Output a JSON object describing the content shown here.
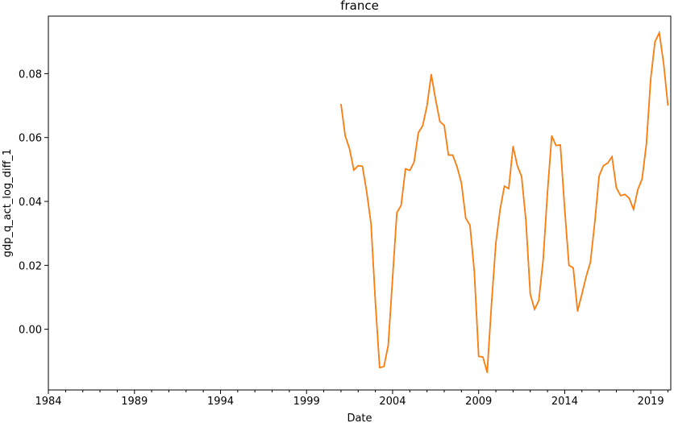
{
  "chart_data": {
    "type": "line",
    "title": "france",
    "xlabel": "Date",
    "ylabel": "gdp_q_act_log_diff_1",
    "x_axis": "date",
    "xlim": [
      "1984-01-01",
      "2020-03-01"
    ],
    "ylim": [
      -0.019,
      0.098
    ],
    "x_ticks": [
      "1984",
      "1989",
      "1994",
      "1999",
      "2004",
      "2009",
      "2014",
      "2019"
    ],
    "y_ticks": [
      "0.00",
      "0.02",
      "0.04",
      "0.06",
      "0.08"
    ],
    "grid": false,
    "legend": "none",
    "series": [
      {
        "color": "#ff7f0e",
        "underlay_color": "#1f77b4",
        "x": [
          "2001-01-01",
          "2001-04-01",
          "2001-07-01",
          "2001-10-01",
          "2002-01-01",
          "2002-04-01",
          "2002-07-01",
          "2002-10-01",
          "2003-01-01",
          "2003-04-01",
          "2003-07-01",
          "2003-10-01",
          "2004-01-01",
          "2004-04-01",
          "2004-07-01",
          "2004-10-01",
          "2005-01-01",
          "2005-04-01",
          "2005-07-01",
          "2005-10-01",
          "2006-01-01",
          "2006-04-01",
          "2006-07-01",
          "2006-10-01",
          "2007-01-01",
          "2007-04-01",
          "2007-07-01",
          "2007-10-01",
          "2008-01-01",
          "2008-04-01",
          "2008-07-01",
          "2008-10-01",
          "2009-01-01",
          "2009-04-01",
          "2009-07-01",
          "2009-10-01",
          "2010-01-01",
          "2010-04-01",
          "2010-07-01",
          "2010-10-01",
          "2011-01-01",
          "2011-04-01",
          "2011-07-01",
          "2011-10-01",
          "2012-01-01",
          "2012-04-01",
          "2012-07-01",
          "2012-10-01",
          "2013-01-01",
          "2013-04-01",
          "2013-07-01",
          "2013-10-01",
          "2014-01-01",
          "2014-04-01",
          "2014-07-01",
          "2014-10-01",
          "2015-01-01",
          "2015-04-01",
          "2015-07-01",
          "2015-10-01",
          "2016-01-01",
          "2016-04-01",
          "2016-07-01",
          "2016-10-01",
          "2017-01-01",
          "2017-04-01",
          "2017-07-01",
          "2017-10-01",
          "2018-01-01",
          "2018-04-01",
          "2018-07-01",
          "2018-10-01",
          "2019-01-01",
          "2019-04-01",
          "2019-07-01",
          "2019-10-01",
          "2020-01-01"
        ],
        "y": [
          0.0705,
          0.0605,
          0.0565,
          0.0498,
          0.0512,
          0.051,
          0.043,
          0.033,
          0.0085,
          -0.012,
          -0.0117,
          -0.005,
          0.016,
          0.0365,
          0.0388,
          0.0502,
          0.0497,
          0.0523,
          0.0615,
          0.0637,
          0.07,
          0.0797,
          0.072,
          0.065,
          0.0638,
          0.0545,
          0.0545,
          0.0508,
          0.0458,
          0.0348,
          0.0325,
          0.018,
          -0.0085,
          -0.0087,
          -0.0135,
          0.008,
          0.027,
          0.0375,
          0.0448,
          0.044,
          0.0572,
          0.0512,
          0.0478,
          0.034,
          0.011,
          0.0062,
          0.009,
          0.0218,
          0.043,
          0.0605,
          0.0575,
          0.0577,
          0.0375,
          0.02,
          0.0192,
          0.0057,
          0.011,
          0.0165,
          0.021,
          0.0335,
          0.048,
          0.0512,
          0.052,
          0.054,
          0.0443,
          0.0418,
          0.0422,
          0.041,
          0.0375,
          0.0437,
          0.047,
          0.058,
          0.0785,
          0.09,
          0.0928,
          0.0832,
          0.07
        ]
      }
    ]
  }
}
